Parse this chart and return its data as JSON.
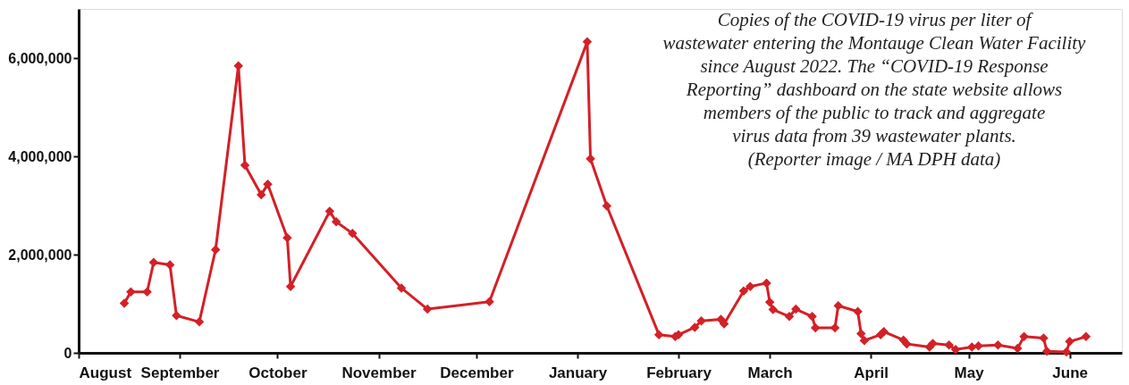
{
  "chart_data": {
    "type": "line",
    "annotations": [
      "Copies of  the COVID-19 virus per liter of\nwastewater entering the Montauge Clean Water Facility\nsince August 2022.  The “COVID-19 Response\nReporting” dashboard on the state website allows\nmembers of  the public to track and aggregate\nvirus data from 39 wastewater plants.\n(Reporter image / MA DPH data)"
    ],
    "x": [
      "2022-08-15",
      "2022-08-17",
      "2022-08-22",
      "2022-08-24",
      "2022-08-29",
      "2022-08-31",
      "2022-09-07",
      "2022-09-12",
      "2022-09-19",
      "2022-09-21",
      "2022-09-26",
      "2022-09-28",
      "2022-10-04",
      "2022-10-05",
      "2022-10-17",
      "2022-10-19",
      "2022-10-24",
      "2022-11-08",
      "2022-11-16",
      "2022-12-05",
      "2023-01-04",
      "2023-01-05",
      "2023-01-10",
      "2023-01-26",
      "2023-01-31",
      "2023-02-01",
      "2023-02-06",
      "2023-02-08",
      "2023-02-14",
      "2023-02-15",
      "2023-02-21",
      "2023-02-23",
      "2023-02-28",
      "2023-03-01",
      "2023-03-02",
      "2023-03-07",
      "2023-03-09",
      "2023-03-14",
      "2023-03-15",
      "2023-03-21",
      "2023-03-22",
      "2023-03-28",
      "2023-03-29",
      "2023-03-30",
      "2023-04-04",
      "2023-04-05",
      "2023-04-11",
      "2023-04-12",
      "2023-04-19",
      "2023-04-20",
      "2023-04-25",
      "2023-04-27",
      "2023-05-02",
      "2023-05-04",
      "2023-05-10",
      "2023-05-16",
      "2023-05-18",
      "2023-05-24",
      "2023-05-25",
      "2023-05-31",
      "2023-06-01",
      "2023-06-06"
    ],
    "series": [
      {
        "color": "#d42027",
        "values": [
          1010000,
          1240000,
          1240000,
          1840000,
          1790000,
          760000,
          630000,
          2100000,
          5840000,
          3820000,
          3220000,
          3430000,
          2340000,
          1350000,
          2880000,
          2670000,
          2430000,
          1320000,
          890000,
          1040000,
          6330000,
          3950000,
          2990000,
          370000,
          330000,
          370000,
          520000,
          650000,
          680000,
          590000,
          1260000,
          1350000,
          1420000,
          1030000,
          880000,
          740000,
          890000,
          740000,
          510000,
          510000,
          960000,
          840000,
          390000,
          250000,
          370000,
          430000,
          260000,
          180000,
          120000,
          190000,
          160000,
          70000,
          120000,
          140000,
          160000,
          90000,
          330000,
          300000,
          30000,
          20000,
          230000,
          330000
        ]
      }
    ],
    "xlim": [
      "2022-08-01",
      "2023-06-17"
    ],
    "xticks": [
      {
        "value": "2022-08-01",
        "label": "August"
      },
      {
        "value": "2022-09-01",
        "label": "September"
      },
      {
        "value": "2022-10-01",
        "label": "October"
      },
      {
        "value": "2022-11-01",
        "label": "November"
      },
      {
        "value": "2022-12-01",
        "label": "December"
      },
      {
        "value": "2023-01-01",
        "label": "January"
      },
      {
        "value": "2023-02-01",
        "label": "February"
      },
      {
        "value": "2023-03-01",
        "label": "March"
      },
      {
        "value": "2023-04-01",
        "label": "April"
      },
      {
        "value": "2023-05-01",
        "label": "May"
      },
      {
        "value": "2023-06-01",
        "label": "June"
      }
    ],
    "ylim": [
      0,
      7000000
    ],
    "yticks": [
      0,
      {
        "value": 2000000,
        "label": "2,000,000"
      },
      {
        "value": 4000000,
        "label": "4,000,000"
      },
      {
        "value": 6000000,
        "label": "6,000,000"
      }
    ],
    "grid": false,
    "marker": "diamond",
    "line_style": "solid"
  }
}
